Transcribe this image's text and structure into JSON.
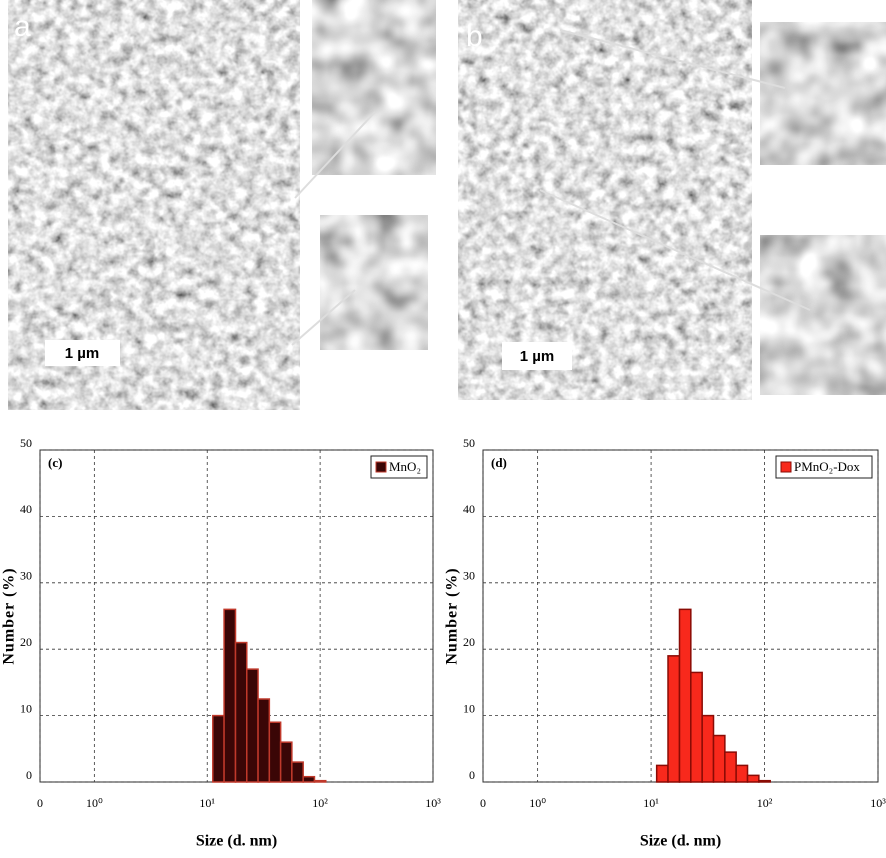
{
  "sem_panels": [
    {
      "label": "a",
      "scale_bar": "1 µm"
    },
    {
      "label": "b",
      "scale_bar": "1 µm"
    }
  ],
  "chart_data": [
    {
      "type": "histogram",
      "title": "(c)",
      "xlabel": "Size (d. nm)",
      "ylabel": "Number (%)",
      "xscale": "log",
      "grid": true,
      "legend": "upper right",
      "xlim": [
        0.33,
        1000
      ],
      "ylim": [
        0,
        50
      ],
      "xticks": [
        {
          "value": 0.33,
          "label": "0"
        },
        {
          "value": 1,
          "label": "10⁰"
        },
        {
          "value": 10,
          "label": "10¹"
        },
        {
          "value": 100,
          "label": "10²"
        },
        {
          "value": 1000,
          "label": "10³"
        }
      ],
      "yticks": [
        0,
        10,
        20,
        30,
        40,
        50
      ],
      "bins": [
        11.2,
        14.1,
        17.8,
        22.4,
        28.2,
        35.5,
        44.7,
        56.2,
        70.8,
        89.1,
        112.2
      ],
      "series": [
        {
          "name": "MnO₂",
          "color": "#3a0606",
          "edgecolor": "#c0392b",
          "values": [
            10,
            26,
            21,
            17,
            12.5,
            9,
            6,
            3,
            0.8,
            0.2
          ]
        }
      ]
    },
    {
      "type": "histogram",
      "title": "(d)",
      "xlabel": "Size (d. nm)",
      "ylabel": "Number (%)",
      "xscale": "log",
      "grid": true,
      "legend": "upper right",
      "xlim": [
        0.33,
        1000
      ],
      "ylim": [
        0,
        50
      ],
      "xticks": [
        {
          "value": 0.33,
          "label": "0"
        },
        {
          "value": 1,
          "label": "10⁰"
        },
        {
          "value": 10,
          "label": "10¹"
        },
        {
          "value": 100,
          "label": "10²"
        },
        {
          "value": 1000,
          "label": "10³"
        }
      ],
      "yticks": [
        0,
        10,
        20,
        30,
        40,
        50
      ],
      "bins": [
        11.2,
        14.1,
        17.8,
        22.4,
        28.2,
        35.5,
        44.7,
        56.2,
        70.8,
        89.1,
        112.2
      ],
      "series": [
        {
          "name": "PMnO₂-Dox",
          "color": "#f8291c",
          "edgecolor": "#8a0b05",
          "values": [
            2.5,
            19,
            26,
            16.5,
            10,
            7,
            4.5,
            2.5,
            1,
            0.2
          ]
        }
      ]
    }
  ]
}
